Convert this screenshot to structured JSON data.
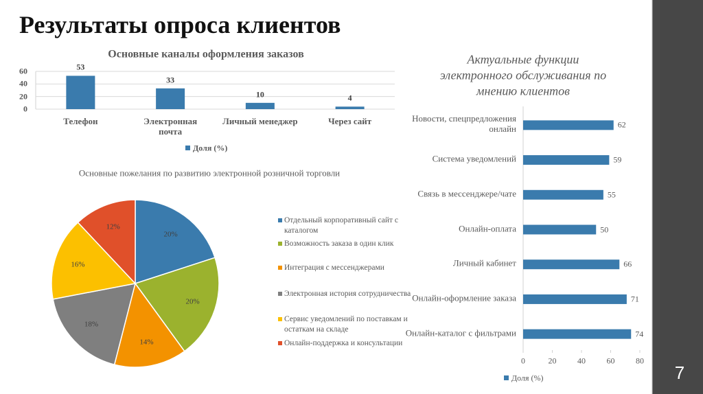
{
  "title": "Результаты опроса клиентов",
  "page_number": "7",
  "chart_data": [
    {
      "type": "bar",
      "title": "Основные каналы оформления заказов",
      "categories": [
        "Телефон",
        "Электронная почта",
        "Личный менеджер",
        "Через сайт"
      ],
      "series": [
        {
          "name": "Доля (%)",
          "color": "#3a7bad",
          "values": [
            53,
            33,
            10,
            4
          ]
        }
      ],
      "ylim": [
        0,
        60
      ],
      "yticks": [
        0,
        20,
        40,
        60
      ],
      "grid": true,
      "legend": "bottom"
    },
    {
      "type": "pie",
      "title": "Основные пожелания по развитию электронной розничной торговли",
      "categories": [
        "Отдельный корпоративный сайт с каталогом",
        "Возможность заказа в один клик",
        "Интеграция с мессенджерами",
        "Электронная история сотрудничества",
        "Сервис уведомлений по поставкам и остаткам на складе",
        "Онлайн-поддержка и консультации"
      ],
      "values": [
        20,
        20,
        14,
        18,
        16,
        12
      ],
      "value_labels": [
        "20%",
        "20%",
        "14%",
        "18%",
        "16%",
        "12%"
      ],
      "colors": [
        "#3a7bad",
        "#9bb22e",
        "#f39200",
        "#7f7f7f",
        "#fcc000",
        "#e0502a"
      ],
      "legend": "right"
    },
    {
      "type": "barh",
      "title": "Актуальные функции электронного обслуживания по мнению клиентов",
      "categories": [
        "Новости, спецпредложения онлайн",
        "Система уведомлений",
        "Связь в мессенджере/чате",
        "Онлайн-оплата",
        "Личный кабинет",
        "Онлайн-оформление заказа",
        "Онлайн-каталог с фильтрами"
      ],
      "series": [
        {
          "name": "Доля (%)",
          "color": "#3a7bad",
          "values": [
            62,
            59,
            55,
            50,
            66,
            71,
            74
          ]
        }
      ],
      "xlim": [
        0,
        80
      ],
      "xticks": [
        0,
        20,
        40,
        60,
        80
      ],
      "grid": false,
      "legend": "bottom"
    }
  ]
}
